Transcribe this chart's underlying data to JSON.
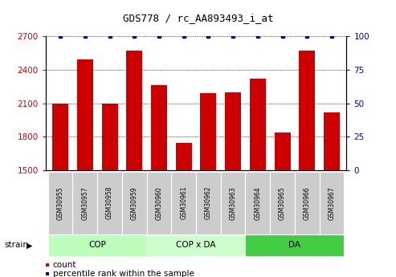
{
  "title": "GDS778 / rc_AA893493_i_at",
  "samples": [
    "GSM30955",
    "GSM30957",
    "GSM30958",
    "GSM30959",
    "GSM30960",
    "GSM30961",
    "GSM30962",
    "GSM30963",
    "GSM30964",
    "GSM30965",
    "GSM30966",
    "GSM30967"
  ],
  "counts": [
    2100,
    2490,
    2095,
    2570,
    2260,
    1745,
    2190,
    2195,
    2320,
    1840,
    2570,
    2020
  ],
  "percentile_ranks": [
    100,
    100,
    100,
    100,
    100,
    100,
    100,
    100,
    100,
    100,
    100,
    100
  ],
  "ylim_left": [
    1500,
    2700
  ],
  "ylim_right": [
    0,
    100
  ],
  "yticks_left": [
    1500,
    1800,
    2100,
    2400,
    2700
  ],
  "yticks_right": [
    0,
    25,
    50,
    75,
    100
  ],
  "bar_color": "#cc0000",
  "dot_color": "#0000cc",
  "groups": [
    {
      "label": "COP",
      "start": 0,
      "end": 4,
      "color": "#bbffbb"
    },
    {
      "label": "COP x DA",
      "start": 4,
      "end": 8,
      "color": "#ccffcc"
    },
    {
      "label": "DA",
      "start": 8,
      "end": 12,
      "color": "#44cc44"
    }
  ],
  "sample_box_color": "#cccccc",
  "strain_label": "strain",
  "legend_count_label": "count",
  "legend_pct_label": "percentile rank within the sample"
}
